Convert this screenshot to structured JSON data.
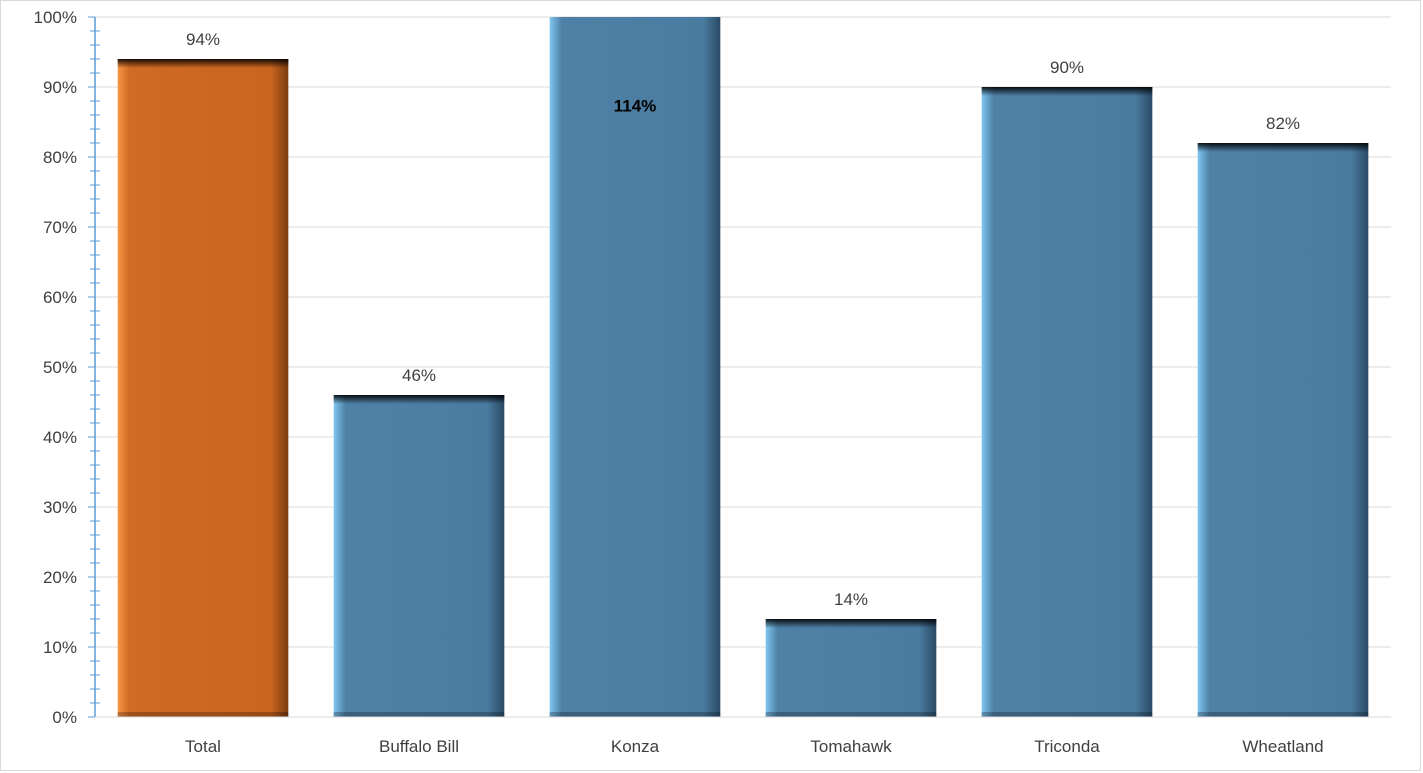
{
  "chart_data": {
    "type": "bar",
    "title": "",
    "xlabel": "",
    "ylabel": "",
    "categories": [
      "Total",
      "Buffalo Bill",
      "Konza",
      "Tomahawk",
      "Triconda",
      "Wheatland"
    ],
    "values": [
      94,
      46,
      114,
      14,
      90,
      82
    ],
    "data_labels": [
      "94%",
      "46%",
      "114%",
      "14%",
      "90%",
      "82%"
    ],
    "ylim": [
      0,
      100
    ],
    "y_unit": "%",
    "y_ticks": [
      0,
      10,
      20,
      30,
      40,
      50,
      60,
      70,
      80,
      90,
      100
    ],
    "y_tick_labels": [
      "0%",
      "10%",
      "20%",
      "30%",
      "40%",
      "50%",
      "60%",
      "70%",
      "80%",
      "90%",
      "100%"
    ],
    "grid": true,
    "legend": "none",
    "colors": {
      "highlight": "#d06a24",
      "default": "#4f81a6",
      "axis": "#5b9bd5",
      "grid": "#d9d9d9"
    },
    "highlight_category": "Total",
    "bold_label_category": "Konza"
  }
}
